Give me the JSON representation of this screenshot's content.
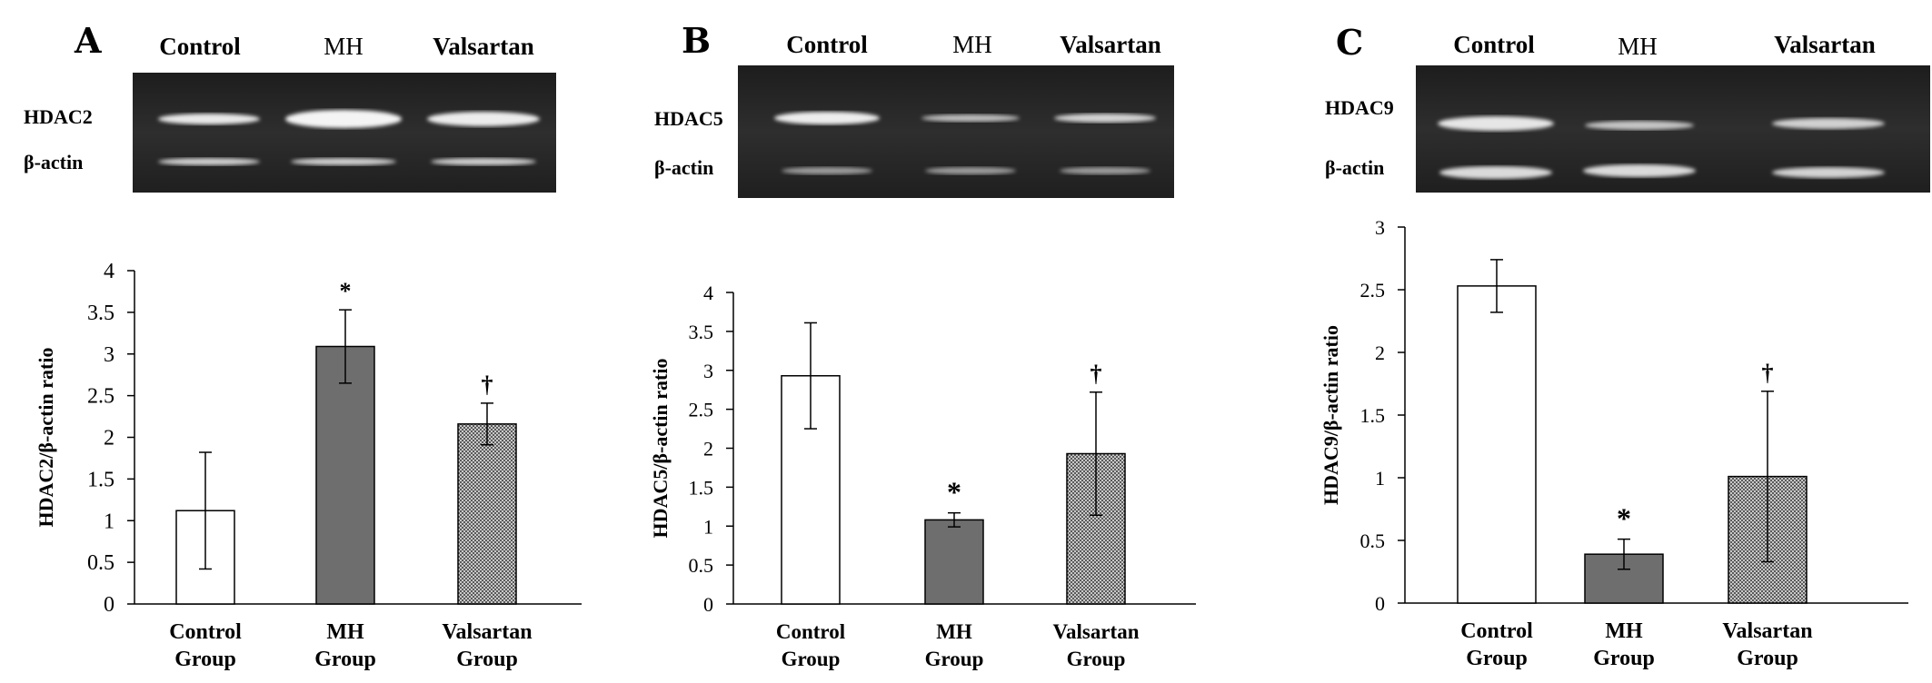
{
  "chart_data": [
    {
      "type": "bar",
      "panel_label": "A",
      "lane_labels": [
        "Control",
        "MH",
        "Valsartan"
      ],
      "blot_rows": [
        "HDAC2",
        "β-actin"
      ],
      "categories": [
        [
          "Control",
          "Group"
        ],
        [
          "MH",
          "Group"
        ],
        [
          "Valsartan",
          "Group"
        ]
      ],
      "values": [
        1.12,
        3.09,
        2.16
      ],
      "errors": [
        0.7,
        0.44,
        0.25
      ],
      "significance": [
        "",
        "*",
        "†"
      ],
      "ylabel": "HDAC2/β-actin ratio",
      "ylim": [
        0,
        4
      ],
      "yticks": [
        "0",
        "0.5",
        "1",
        "1.5",
        "2",
        "2.5",
        "3",
        "3.5",
        "4"
      ],
      "bar_styles": [
        "white",
        "gray",
        "hatched"
      ]
    },
    {
      "type": "bar",
      "panel_label": "B",
      "lane_labels": [
        "Control",
        "MH",
        "Valsartan"
      ],
      "blot_rows": [
        "HDAC5",
        "β-actin"
      ],
      "categories": [
        [
          "Control",
          "Group"
        ],
        [
          "MH",
          "Group"
        ],
        [
          "Valsartan",
          "Group"
        ]
      ],
      "values": [
        2.93,
        1.08,
        1.93
      ],
      "errors": [
        0.68,
        0.09,
        0.79
      ],
      "significance": [
        "",
        "*",
        "†"
      ],
      "ylabel": "HDAC5/β-actin ratio",
      "ylim": [
        0,
        4
      ],
      "yticks": [
        "0",
        "0.5",
        "1",
        "1.5",
        "2",
        "2.5",
        "3",
        "3.5",
        "4"
      ],
      "bar_styles": [
        "white",
        "gray",
        "hatched"
      ]
    },
    {
      "type": "bar",
      "panel_label": "C",
      "lane_labels": [
        "Control",
        "MH",
        "Valsartan"
      ],
      "blot_rows": [
        "HDAC9",
        "β-actin"
      ],
      "categories": [
        [
          "Control",
          "Group"
        ],
        [
          "MH",
          "Group"
        ],
        [
          "Valsartan",
          "Group"
        ]
      ],
      "values": [
        2.53,
        0.39,
        1.01
      ],
      "errors": [
        0.21,
        0.12,
        0.68
      ],
      "significance": [
        "",
        "*",
        "†"
      ],
      "ylabel": "HDAC9/β-actin ratio",
      "ylim": [
        0,
        3
      ],
      "yticks": [
        "0",
        "0.5",
        "1",
        "1.5",
        "2",
        "2.5",
        "3"
      ],
      "bar_styles": [
        "white",
        "gray",
        "hatched"
      ]
    }
  ],
  "colors": {
    "bar_gray": "#6e6e6e",
    "bar_white": "#ffffff",
    "gel_background": "#262626",
    "band": "#e8e8e8"
  }
}
